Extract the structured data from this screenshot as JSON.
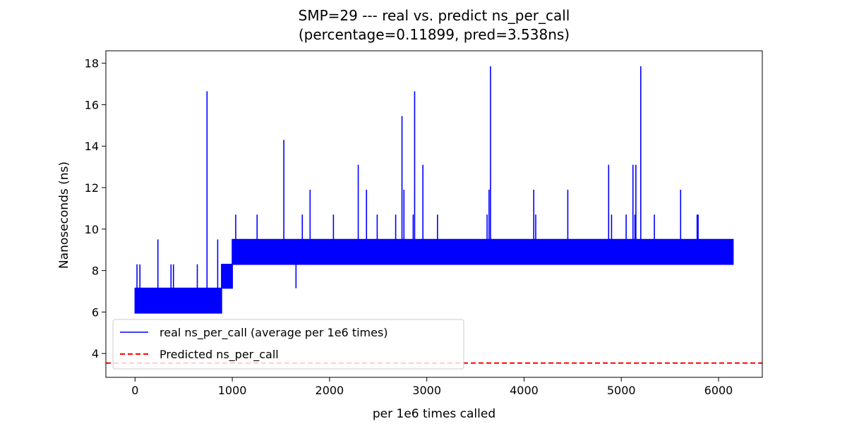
{
  "chart_data": {
    "type": "line",
    "title_line1": "SMP=29 --- real vs. predict ns_per_call",
    "title_line2": "(percentage=0.11899, pred=3.538ns)",
    "xlabel": "per 1e6 times called",
    "ylabel": "Nanoseconds (ns)",
    "xlim": [
      -300,
      6450
    ],
    "ylim": [
      2.85,
      18.6
    ],
    "xticks": [
      0,
      1000,
      2000,
      3000,
      4000,
      5000,
      6000
    ],
    "yticks": [
      4,
      6,
      8,
      10,
      12,
      14,
      16,
      18
    ],
    "grid": false,
    "legend_position": "lower-left",
    "series": [
      {
        "name": "real ns_per_call (average per 1e6 times)",
        "color": "#0000ff",
        "style": "solid",
        "segments": [
          {
            "x_start": 0,
            "x_end": 890,
            "low": 5.95,
            "high": 7.15
          },
          {
            "x_start": 890,
            "x_end": 1000,
            "low": 7.15,
            "high": 8.3
          },
          {
            "x_start": 1000,
            "x_end": 6150,
            "low": 8.3,
            "high": 9.5
          }
        ],
        "spikes": [
          {
            "x": 20,
            "y": 8.3
          },
          {
            "x": 50,
            "y": 8.3
          },
          {
            "x": 235,
            "y": 9.5
          },
          {
            "x": 370,
            "y": 8.3
          },
          {
            "x": 395,
            "y": 8.3
          },
          {
            "x": 640,
            "y": 8.3
          },
          {
            "x": 740,
            "y": 16.65
          },
          {
            "x": 850,
            "y": 9.5
          },
          {
            "x": 1035,
            "y": 10.7
          },
          {
            "x": 1255,
            "y": 10.7
          },
          {
            "x": 1530,
            "y": 14.3
          },
          {
            "x": 1720,
            "y": 10.7
          },
          {
            "x": 1800,
            "y": 11.9
          },
          {
            "x": 2040,
            "y": 10.7
          },
          {
            "x": 2295,
            "y": 13.1
          },
          {
            "x": 2380,
            "y": 11.9
          },
          {
            "x": 2490,
            "y": 10.7
          },
          {
            "x": 2680,
            "y": 10.7
          },
          {
            "x": 2745,
            "y": 15.45
          },
          {
            "x": 2765,
            "y": 11.9
          },
          {
            "x": 2860,
            "y": 10.7
          },
          {
            "x": 2875,
            "y": 16.65
          },
          {
            "x": 2960,
            "y": 13.1
          },
          {
            "x": 3110,
            "y": 10.7
          },
          {
            "x": 3620,
            "y": 10.7
          },
          {
            "x": 3640,
            "y": 11.9
          },
          {
            "x": 3655,
            "y": 17.85
          },
          {
            "x": 4100,
            "y": 11.9
          },
          {
            "x": 4120,
            "y": 10.7
          },
          {
            "x": 4450,
            "y": 11.9
          },
          {
            "x": 4870,
            "y": 13.1
          },
          {
            "x": 4900,
            "y": 10.7
          },
          {
            "x": 5050,
            "y": 10.7
          },
          {
            "x": 5120,
            "y": 13.1
          },
          {
            "x": 5140,
            "y": 10.7
          },
          {
            "x": 5150,
            "y": 13.1
          },
          {
            "x": 5200,
            "y": 17.85
          },
          {
            "x": 5340,
            "y": 10.7
          },
          {
            "x": 5610,
            "y": 11.9
          },
          {
            "x": 5780,
            "y": 10.7
          },
          {
            "x": 5790,
            "y": 10.7
          }
        ],
        "dips": [
          {
            "x": 1655,
            "y": 7.15
          }
        ]
      },
      {
        "name": "Predicted ns_per_call",
        "color": "#ff0000",
        "style": "dashed",
        "y": 3.538
      }
    ]
  }
}
